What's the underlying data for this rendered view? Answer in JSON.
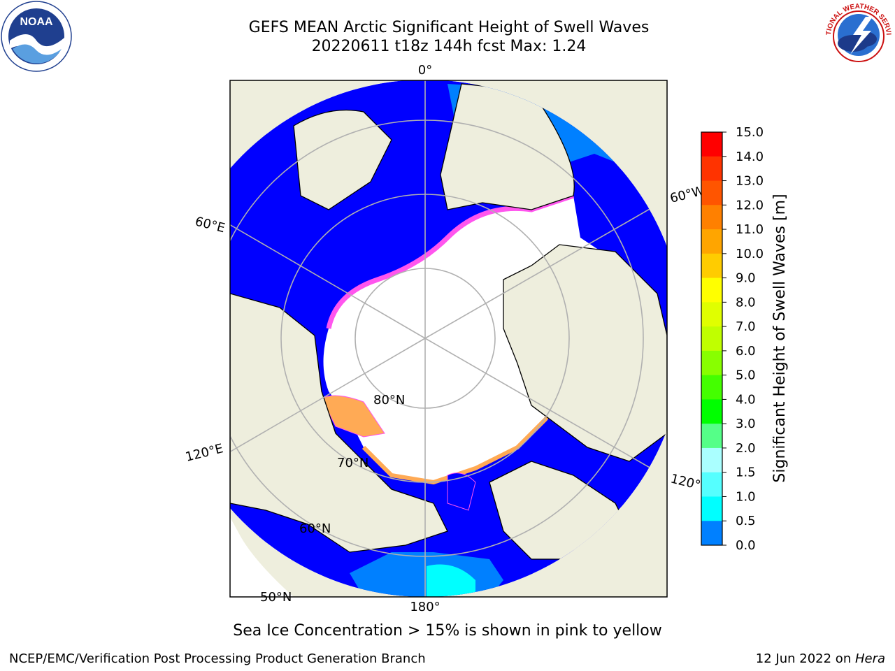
{
  "title": {
    "line1": "GEFS MEAN Arctic Significant Height of Swell Waves",
    "line2": "20220611 t18z 144h fcst   Max: 1.24"
  },
  "logos": {
    "noaa_text": "NOAA",
    "nws_text": "NATIONAL WEATHER SERVICE"
  },
  "map": {
    "projection": "north polar stereographic",
    "lon_labels": [
      "0°",
      "60°W",
      "120°W",
      "180°",
      "120°E",
      "60°E"
    ],
    "lat_labels": [
      "80°N",
      "70°N",
      "60°N",
      "50°N"
    ],
    "colors": {
      "land": "#eeeedd",
      "coast": "#000000",
      "grid": "#b0b0b0",
      "ice_white": "#ffffff",
      "ice_pink": "#ff55ee",
      "ice_orange": "#ffaa55",
      "swell_low": "#0000ff",
      "swell_mid": "#0080ff",
      "swell_high": "#00ffff"
    }
  },
  "colorbar": {
    "label": "Significant Height of Swell Waves [m]",
    "ticks": [
      "15.0",
      "14.0",
      "13.0",
      "12.0",
      "11.0",
      "10.0",
      "9.0",
      "8.0",
      "7.0",
      "6.0",
      "5.0",
      "4.0",
      "3.0",
      "2.0",
      "1.5",
      "1.0",
      "0.5",
      "0.0"
    ],
    "colors": [
      "#ff0000",
      "#ff3300",
      "#ff5500",
      "#ff8000",
      "#ffa500",
      "#ffcc00",
      "#ffff00",
      "#e0ff00",
      "#c0ff00",
      "#88ff00",
      "#44ff00",
      "#00ff00",
      "#55ff88",
      "#aaffff",
      "#55ffff",
      "#00ffff",
      "#0080ff",
      "#0000ff"
    ]
  },
  "footnote": "Sea Ice Concentration > 15% is shown in pink to yellow",
  "credit_left": "NCEP/EMC/Verification Post Processing Product Generation Branch",
  "credit_right_prefix": "12 Jun 2022 on ",
  "credit_right_host": "Hera"
}
